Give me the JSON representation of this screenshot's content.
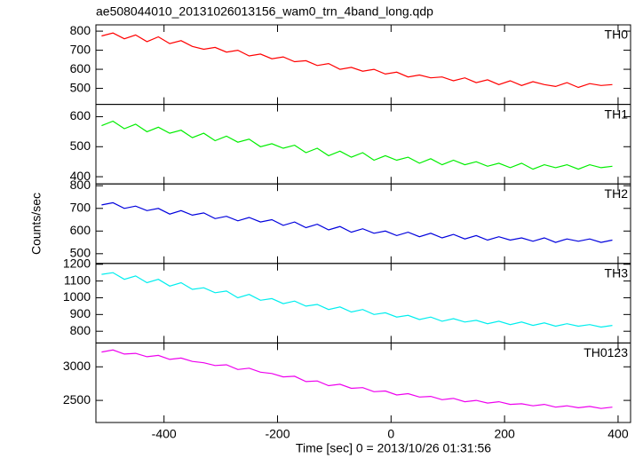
{
  "chart_data": {
    "type": "line",
    "title": "ae508044010_20131026013156_wam0_trn_4band_long.qdp",
    "x_label": "Time [sec] 0 = 2013/10/26 01:31:56",
    "y_label": "Counts/sec",
    "xlim": [
      -520,
      422
    ],
    "xticks": [
      -400,
      -200,
      0,
      200,
      400
    ],
    "x": [
      -510,
      -490,
      -470,
      -450,
      -430,
      -410,
      -390,
      -370,
      -350,
      -330,
      -310,
      -290,
      -270,
      -250,
      -230,
      -210,
      -190,
      -170,
      -150,
      -130,
      -110,
      -90,
      -70,
      -50,
      -30,
      -10,
      10,
      30,
      50,
      70,
      90,
      110,
      130,
      150,
      170,
      190,
      210,
      230,
      250,
      270,
      290,
      310,
      330,
      350,
      370,
      390
    ],
    "panels": [
      {
        "label": "TH0",
        "color": "#ff0000",
        "ylim": [
          416,
          833
        ],
        "yticks": [
          500,
          600,
          700,
          800
        ],
        "values": [
          775,
          790,
          760,
          780,
          745,
          770,
          735,
          750,
          720,
          705,
          715,
          690,
          700,
          670,
          680,
          655,
          665,
          640,
          645,
          620,
          630,
          600,
          610,
          590,
          600,
          575,
          585,
          560,
          570,
          555,
          560,
          540,
          555,
          530,
          545,
          520,
          540,
          515,
          535,
          520,
          510,
          530,
          505,
          525,
          515,
          520
        ]
      },
      {
        "label": "TH1",
        "color": "#00ee00",
        "ylim": [
          376,
          641
        ],
        "yticks": [
          400,
          500,
          600
        ],
        "values": [
          570,
          585,
          560,
          575,
          550,
          565,
          545,
          555,
          530,
          545,
          520,
          535,
          515,
          525,
          500,
          510,
          495,
          505,
          480,
          495,
          470,
          485,
          465,
          480,
          455,
          470,
          455,
          465,
          445,
          460,
          440,
          455,
          440,
          450,
          435,
          445,
          430,
          445,
          425,
          440,
          430,
          440,
          425,
          440,
          430,
          435
        ]
      },
      {
        "label": "TH2",
        "color": "#0000dd",
        "ylim": [
          457,
          808
        ],
        "yticks": [
          500,
          600,
          700,
          800
        ],
        "values": [
          715,
          725,
          700,
          710,
          690,
          700,
          675,
          690,
          670,
          680,
          655,
          665,
          645,
          660,
          640,
          650,
          625,
          640,
          615,
          630,
          605,
          620,
          595,
          610,
          590,
          600,
          580,
          595,
          575,
          590,
          570,
          585,
          565,
          580,
          560,
          575,
          560,
          570,
          555,
          570,
          550,
          565,
          555,
          565,
          550,
          560
        ]
      },
      {
        "label": "TH3",
        "color": "#00eeee",
        "ylim": [
          730,
          1205
        ],
        "yticks": [
          800,
          900,
          1000,
          1100,
          1200
        ],
        "values": [
          1140,
          1150,
          1110,
          1130,
          1090,
          1110,
          1070,
          1090,
          1050,
          1060,
          1030,
          1040,
          1000,
          1020,
          985,
          995,
          965,
          980,
          950,
          960,
          930,
          945,
          915,
          930,
          900,
          910,
          885,
          895,
          870,
          885,
          860,
          875,
          855,
          865,
          845,
          860,
          840,
          855,
          835,
          850,
          830,
          845,
          830,
          840,
          825,
          835
        ]
      },
      {
        "label": "TH0123",
        "color": "#ee00ee",
        "ylim": [
          2171,
          3355
        ],
        "yticks": [
          2500,
          3000
        ],
        "values": [
          3220,
          3250,
          3190,
          3200,
          3150,
          3170,
          3110,
          3130,
          3080,
          3060,
          3020,
          3030,
          2960,
          2980,
          2920,
          2900,
          2850,
          2860,
          2780,
          2790,
          2720,
          2740,
          2680,
          2690,
          2630,
          2640,
          2580,
          2600,
          2550,
          2560,
          2510,
          2530,
          2480,
          2500,
          2460,
          2480,
          2440,
          2450,
          2420,
          2440,
          2400,
          2420,
          2390,
          2410,
          2380,
          2400
        ]
      }
    ]
  }
}
